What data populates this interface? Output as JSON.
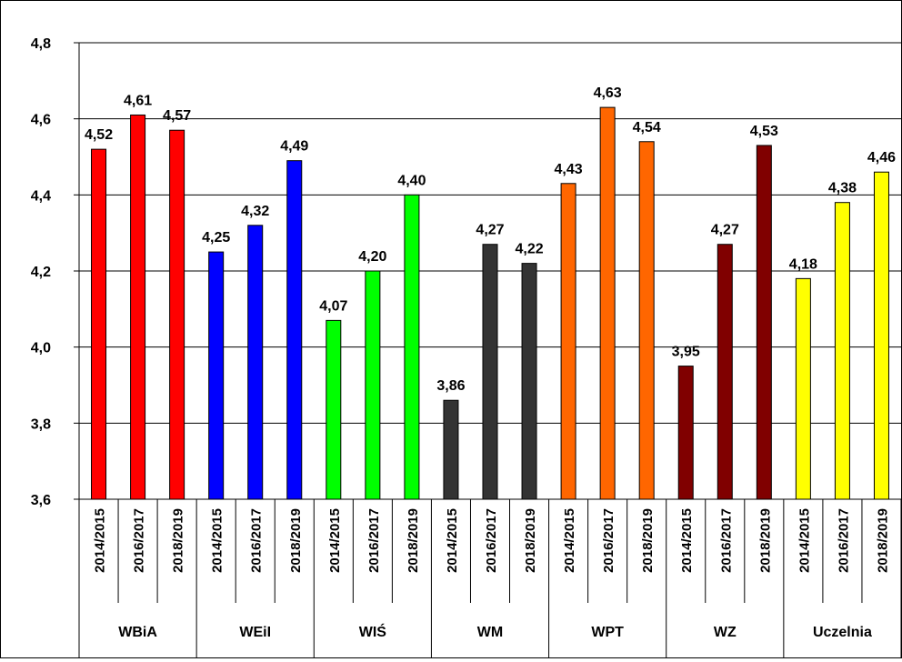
{
  "chart_data": {
    "type": "bar",
    "title": "",
    "xlabel": "",
    "ylabel": "",
    "ylim": [
      3.6,
      4.8
    ],
    "y_ticks": [
      "3,6",
      "3,8",
      "4,0",
      "4,2",
      "4,4",
      "4,6",
      "4,8"
    ],
    "y_tick_values": [
      3.6,
      3.8,
      4.0,
      4.2,
      4.4,
      4.6,
      4.8
    ],
    "grid": true,
    "legend": "none",
    "groups": [
      {
        "name": "WBiA",
        "color": "#ff0000",
        "bars": [
          {
            "period": "2014/2015",
            "value": 4.52,
            "label": "4,52"
          },
          {
            "period": "2016/2017",
            "value": 4.61,
            "label": "4,61"
          },
          {
            "period": "2018/2019",
            "value": 4.57,
            "label": "4,57"
          }
        ]
      },
      {
        "name": "WEiI",
        "color": "#0000ff",
        "bars": [
          {
            "period": "2014/2015",
            "value": 4.25,
            "label": "4,25"
          },
          {
            "period": "2016/2017",
            "value": 4.32,
            "label": "4,32"
          },
          {
            "period": "2018/2019",
            "value": 4.49,
            "label": "4,49"
          }
        ]
      },
      {
        "name": "WIŚ",
        "color": "#00ff00",
        "bars": [
          {
            "period": "2014/2015",
            "value": 4.07,
            "label": "4,07"
          },
          {
            "period": "2016/2017",
            "value": 4.2,
            "label": "4,20"
          },
          {
            "period": "2018/2019",
            "value": 4.4,
            "label": "4,40"
          }
        ]
      },
      {
        "name": "WM",
        "color": "#333333",
        "bars": [
          {
            "period": "2014/2015",
            "value": 3.86,
            "label": "3,86"
          },
          {
            "period": "2016/2017",
            "value": 4.27,
            "label": "4,27"
          },
          {
            "period": "2018/2019",
            "value": 4.22,
            "label": "4,22"
          }
        ]
      },
      {
        "name": "WPT",
        "color": "#ff6600",
        "bars": [
          {
            "period": "2014/2015",
            "value": 4.43,
            "label": "4,43"
          },
          {
            "period": "2016/2017",
            "value": 4.63,
            "label": "4,63"
          },
          {
            "period": "2018/2019",
            "value": 4.54,
            "label": "4,54"
          }
        ]
      },
      {
        "name": "WZ",
        "color": "#800000",
        "bars": [
          {
            "period": "2014/2015",
            "value": 3.95,
            "label": "3,95"
          },
          {
            "period": "2016/2017",
            "value": 4.27,
            "label": "4,27"
          },
          {
            "period": "2018/2019",
            "value": 4.53,
            "label": "4,53"
          }
        ]
      },
      {
        "name": "Uczelnia",
        "color": "#ffff00",
        "bars": [
          {
            "period": "2014/2015",
            "value": 4.18,
            "label": "4,18"
          },
          {
            "period": "2016/2017",
            "value": 4.38,
            "label": "4,38"
          },
          {
            "period": "2018/2019",
            "value": 4.46,
            "label": "4,46"
          }
        ]
      }
    ]
  }
}
